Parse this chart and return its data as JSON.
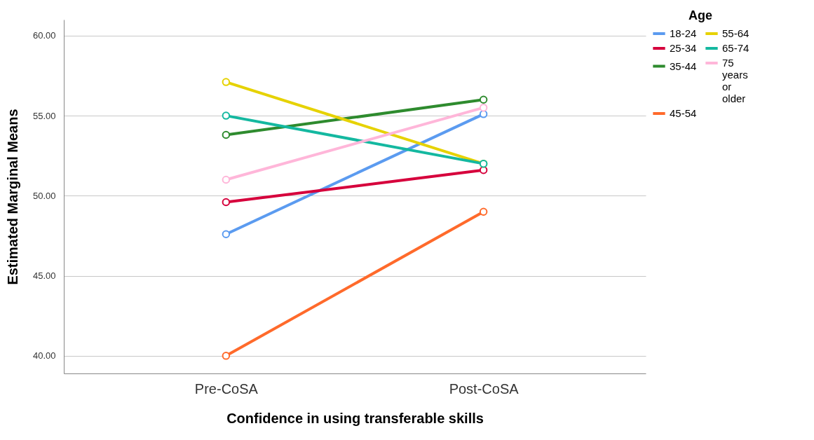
{
  "chart_data": {
    "type": "line",
    "xlabel": "Confidence in using transferable skills",
    "ylabel": "Estimated Marginal Means",
    "legend_title": "Age",
    "categories": [
      "Pre-CoSA",
      "Post-CoSA"
    ],
    "series": [
      {
        "name": "18-24",
        "color": "#5b9bf0",
        "values": [
          47.6,
          55.1
        ]
      },
      {
        "name": "25-34",
        "color": "#d6003c",
        "values": [
          49.6,
          51.6
        ]
      },
      {
        "name": "35-44",
        "color": "#2e8b2e",
        "values": [
          53.8,
          56.0
        ]
      },
      {
        "name": "45-54",
        "color": "#ff6a2b",
        "values": [
          40.0,
          49.0
        ]
      },
      {
        "name": "55-64",
        "color": "#e6d200",
        "values": [
          57.1,
          52.0
        ]
      },
      {
        "name": "65-74",
        "color": "#14b8a0",
        "values": [
          55.0,
          52.0
        ]
      },
      {
        "name": "75 years or older",
        "color": "#ffb6d9",
        "values": [
          51.0,
          55.5
        ]
      }
    ],
    "ylim": [
      38.9,
      61
    ],
    "yticks": [
      {
        "value": 40,
        "label": "40.00"
      },
      {
        "value": 45,
        "label": "45.00"
      },
      {
        "value": 50,
        "label": "50.00"
      },
      {
        "value": 55,
        "label": "55.00"
      },
      {
        "value": 60,
        "label": "60.00"
      }
    ],
    "grid": "y",
    "legend": "top right",
    "marker": "circle"
  }
}
